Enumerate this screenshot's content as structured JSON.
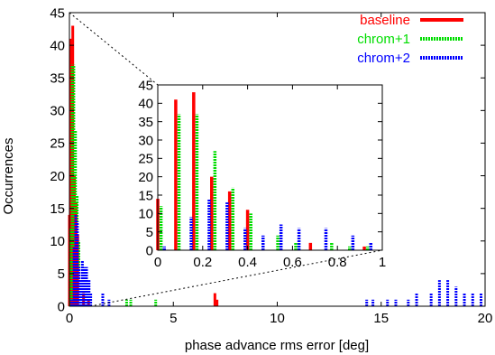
{
  "chart_data": [
    {
      "type": "bar",
      "title": "",
      "xlabel": "phase advance rms error [deg]",
      "ylabel": "Occurrences",
      "xlim": [
        0,
        20
      ],
      "ylim": [
        0,
        45
      ],
      "xticks": [
        0,
        5,
        10,
        15,
        20
      ],
      "yticks": [
        0,
        5,
        10,
        15,
        20,
        25,
        30,
        35,
        40,
        45
      ],
      "grid": false,
      "legend_position": "top-right",
      "series": [
        {
          "name": "baseline",
          "color": "#ff0000",
          "style": "solid",
          "points": [
            [
              0.0,
              14
            ],
            [
              0.08,
              41
            ],
            [
              0.16,
              43
            ],
            [
              0.24,
              20
            ],
            [
              0.32,
              16
            ],
            [
              0.4,
              11
            ],
            [
              0.68,
              2
            ],
            [
              0.92,
              1
            ],
            [
              7.0,
              2
            ],
            [
              7.1,
              1
            ]
          ]
        },
        {
          "name": "chrom+1",
          "color": "#00dd00",
          "style": "dotted",
          "points": [
            [
              0.0,
              12
            ],
            [
              0.08,
              37
            ],
            [
              0.16,
              37
            ],
            [
              0.24,
              27
            ],
            [
              0.32,
              17
            ],
            [
              0.4,
              10
            ],
            [
              0.52,
              4
            ],
            [
              0.6,
              2
            ],
            [
              0.76,
              2
            ],
            [
              0.84,
              1
            ],
            [
              0.92,
              1
            ],
            [
              2.7,
              1
            ],
            [
              2.9,
              1
            ],
            [
              4.1,
              1
            ]
          ]
        },
        {
          "name": "chrom+2",
          "color": "#0000ff",
          "style": "dotted",
          "points": [
            [
              0.0,
              1
            ],
            [
              0.12,
              9
            ],
            [
              0.2,
              14
            ],
            [
              0.28,
              13
            ],
            [
              0.36,
              6
            ],
            [
              0.44,
              4
            ],
            [
              0.52,
              7
            ],
            [
              0.6,
              6
            ],
            [
              0.72,
              6
            ],
            [
              0.84,
              4
            ],
            [
              0.92,
              2
            ],
            [
              1.5,
              2
            ],
            [
              1.8,
              1
            ],
            [
              14.2,
              1
            ],
            [
              14.5,
              1
            ],
            [
              15.2,
              1
            ],
            [
              15.6,
              1
            ],
            [
              16.2,
              1
            ],
            [
              16.6,
              2
            ],
            [
              17.3,
              2
            ],
            [
              17.7,
              4
            ],
            [
              18.1,
              4
            ],
            [
              18.5,
              3
            ],
            [
              18.9,
              2
            ],
            [
              19.3,
              2
            ],
            [
              19.7,
              2
            ]
          ]
        }
      ]
    },
    {
      "type": "bar",
      "title": "",
      "xlabel": "",
      "ylabel": "",
      "xlim": [
        0,
        1
      ],
      "ylim": [
        0,
        45
      ],
      "xticks": [
        0,
        0.2,
        0.4,
        0.6,
        0.8,
        1
      ],
      "yticks": [
        0,
        5,
        10,
        15,
        20,
        25,
        30,
        35,
        40,
        45
      ],
      "grid": false,
      "legend_position": "none"
    }
  ],
  "labels": {
    "main_x_ticks": [
      "0",
      "5",
      "10",
      "15",
      "20"
    ],
    "main_y_ticks": [
      "0",
      "5",
      "10",
      "15",
      "20",
      "25",
      "30",
      "35",
      "40",
      "45"
    ],
    "inset_x_ticks": [
      "0",
      "0.2",
      "0.4",
      "0.6",
      "0.8",
      "1"
    ],
    "inset_y_ticks": [
      "0",
      "5",
      "10",
      "15",
      "20",
      "25",
      "30",
      "35",
      "40",
      "45"
    ]
  }
}
